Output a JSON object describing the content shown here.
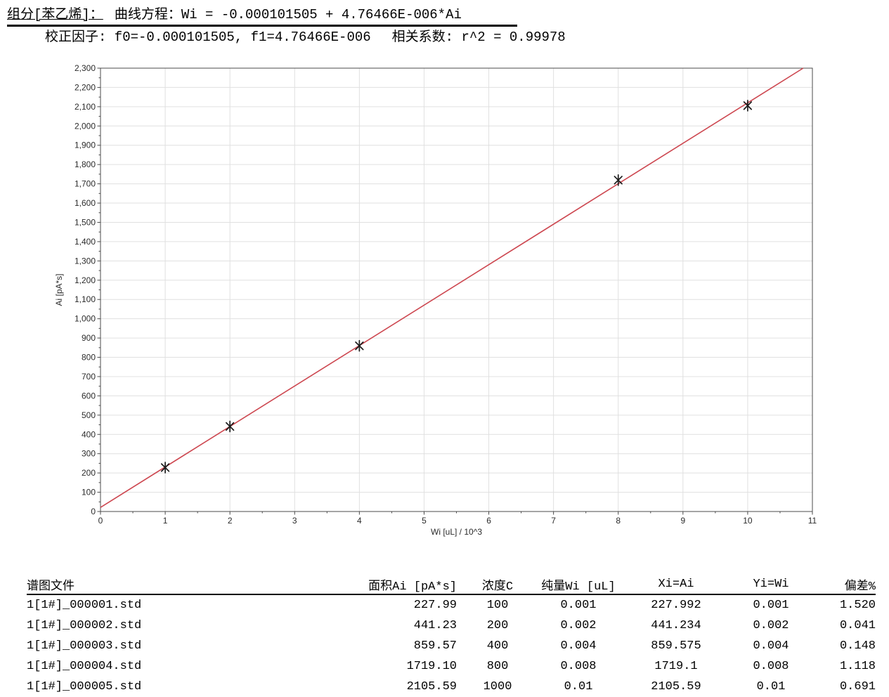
{
  "header": {
    "component_label": "组分[苯乙烯]：",
    "equation": "曲线方程：Wi = -0.000101505 + 4.76466E-006*Ai",
    "factors": "校正因子: f0=-0.000101505, f1=4.76466E-006",
    "correlation": "相关系数: r^2 = 0.99978"
  },
  "chart_data": {
    "type": "scatter",
    "title": "",
    "xlabel": "Wi [uL] / 10^3",
    "ylabel": "Ai [pA*s]",
    "xlim": [
      0,
      11
    ],
    "ylim": [
      0,
      2300
    ],
    "x_major_step": 1,
    "x_minor_step": 0.5,
    "y_major_step": 100,
    "y_minor_step": 50,
    "grid": true,
    "legend_position": "none",
    "points": [
      [
        1,
        227.99
      ],
      [
        2,
        441.23
      ],
      [
        4,
        859.57
      ],
      [
        8,
        1719.1
      ],
      [
        10,
        2105.59
      ]
    ],
    "fit_line": {
      "slope": 209.878,
      "intercept": 21.3
    },
    "colors": {
      "line": "#cd4750",
      "marker": "#1c1c1c",
      "grid": "#e0e0e0",
      "frame": "#4b4b4b",
      "text": "#2b2b2b"
    }
  },
  "table": {
    "columns": [
      {
        "label": "谱图文件"
      },
      {
        "label": "面积Ai [pA*s]"
      },
      {
        "label": "浓度C"
      },
      {
        "label": "纯量Wi [uL]"
      },
      {
        "label": "Xi=Ai"
      },
      {
        "label": "Yi=Wi"
      },
      {
        "label": "偏差%"
      }
    ],
    "rows": [
      [
        "1[1#]_000001.std",
        "227.99",
        "100",
        "0.001",
        "227.992",
        "0.001",
        "1.520"
      ],
      [
        "1[1#]_000002.std",
        "441.23",
        "200",
        "0.002",
        "441.234",
        "0.002",
        "0.041"
      ],
      [
        "1[1#]_000003.std",
        "859.57",
        "400",
        "0.004",
        "859.575",
        "0.004",
        "0.148"
      ],
      [
        "1[1#]_000004.std",
        "1719.10",
        "800",
        "0.008",
        "1719.1",
        "0.008",
        "1.118"
      ],
      [
        "1[1#]_000005.std",
        "2105.59",
        "1000",
        "0.01",
        "2105.59",
        "0.01",
        "0.691"
      ]
    ]
  }
}
